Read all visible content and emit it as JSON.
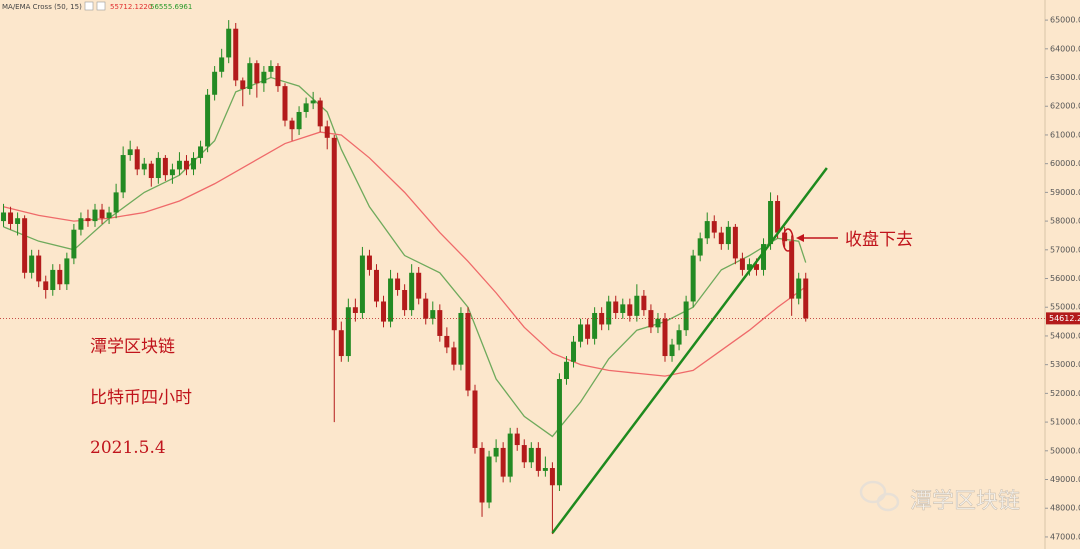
{
  "chart_data": {
    "type": "candlestick",
    "indicator": "MA/EMA Cross (50, 15)",
    "indicator_values": [
      {
        "text": "55712.1220",
        "color": "#e03030"
      },
      {
        "text": "56555.6961",
        "color": "#2a9a2a"
      }
    ],
    "title_lines": [
      "潭学区块链",
      "比特币四小时",
      "2021.5.4"
    ],
    "annotation": "收盘下去",
    "watermark": "潭学区块链",
    "xlim": [
      -0.5,
      148
    ],
    "ylim": [
      46580,
      65700
    ],
    "yticks": [
      {
        "value": 47000,
        "label": "47000.00"
      },
      {
        "value": 48000,
        "label": "48000.00"
      },
      {
        "value": 49000,
        "label": "49000.00"
      },
      {
        "value": 50000,
        "label": "50000.00"
      },
      {
        "value": 51000,
        "label": "51000.00"
      },
      {
        "value": 52000,
        "label": "52000.00"
      },
      {
        "value": 53000,
        "label": "53000.00"
      },
      {
        "value": 54000,
        "label": "54000.00"
      },
      {
        "value": 55000,
        "label": "55000.00"
      },
      {
        "value": 56000,
        "label": "56000.00"
      },
      {
        "value": 57000,
        "label": "57000.00"
      },
      {
        "value": 58000,
        "label": "58000.00"
      },
      {
        "value": 59000,
        "label": "59000.00"
      },
      {
        "value": 60000,
        "label": "60000.00"
      },
      {
        "value": 61000,
        "label": "61000.00"
      },
      {
        "value": 62000,
        "label": "62000.00"
      },
      {
        "value": 63000,
        "label": "63000.00"
      },
      {
        "value": 64000,
        "label": "64000.00"
      },
      {
        "value": 65000,
        "label": "65000.00"
      }
    ],
    "last_price": 54612.24,
    "up_color": "#238a23",
    "down_color": "#b31b1b",
    "ohlc": [
      [
        58000,
        58600,
        57800,
        58300
      ],
      [
        58300,
        58500,
        57700,
        57900
      ],
      [
        57900,
        58300,
        57500,
        58100
      ],
      [
        58100,
        58200,
        56000,
        56200
      ],
      [
        56200,
        57000,
        56000,
        56800
      ],
      [
        56800,
        57000,
        55700,
        55900
      ],
      [
        55900,
        56100,
        55300,
        55600
      ],
      [
        55600,
        56500,
        55400,
        56300
      ],
      [
        56300,
        56500,
        55600,
        55800
      ],
      [
        55800,
        56900,
        55600,
        56700
      ],
      [
        56700,
        57900,
        56500,
        57700
      ],
      [
        57700,
        58300,
        57500,
        58100
      ],
      [
        58100,
        58400,
        57800,
        58000
      ],
      [
        58000,
        58600,
        57800,
        58400
      ],
      [
        58400,
        58600,
        57900,
        58100
      ],
      [
        58100,
        58500,
        57900,
        58300
      ],
      [
        58300,
        59300,
        58100,
        59000
      ],
      [
        59000,
        60600,
        58800,
        60300
      ],
      [
        60300,
        60800,
        60100,
        60500
      ],
      [
        60500,
        60600,
        59600,
        59800
      ],
      [
        59800,
        60200,
        59600,
        60000
      ],
      [
        60000,
        60100,
        59200,
        59500
      ],
      [
        59500,
        60400,
        59300,
        60200
      ],
      [
        60200,
        60300,
        59400,
        59600
      ],
      [
        59600,
        60000,
        59300,
        59800
      ],
      [
        59800,
        60400,
        59600,
        60100
      ],
      [
        60100,
        60300,
        59600,
        59800
      ],
      [
        59800,
        60400,
        59600,
        60200
      ],
      [
        60200,
        60800,
        60000,
        60600
      ],
      [
        60600,
        62600,
        60400,
        62400
      ],
      [
        62400,
        63400,
        62200,
        63200
      ],
      [
        63200,
        64000,
        63000,
        63700
      ],
      [
        63700,
        65000,
        63500,
        64700
      ],
      [
        64700,
        64900,
        62700,
        62900
      ],
      [
        62900,
        63000,
        62000,
        62600
      ],
      [
        62600,
        63700,
        62400,
        63500
      ],
      [
        63500,
        63600,
        62300,
        62800
      ],
      [
        62800,
        63400,
        62500,
        63200
      ],
      [
        63200,
        63600,
        63000,
        63400
      ],
      [
        63400,
        63500,
        62500,
        62700
      ],
      [
        62700,
        62800,
        61300,
        61500
      ],
      [
        61500,
        61600,
        60800,
        61200
      ],
      [
        61200,
        62000,
        61000,
        61800
      ],
      [
        61800,
        62300,
        61600,
        62100
      ],
      [
        62100,
        62500,
        61900,
        62200
      ],
      [
        62200,
        62300,
        61100,
        61300
      ],
      [
        61300,
        61500,
        60500,
        60900
      ],
      [
        60900,
        61000,
        51000,
        54200
      ],
      [
        54200,
        54500,
        53100,
        53300
      ],
      [
        53300,
        55300,
        53100,
        55000
      ],
      [
        55000,
        55300,
        54500,
        54800
      ],
      [
        54800,
        57100,
        54600,
        56800
      ],
      [
        56800,
        57000,
        56100,
        56300
      ],
      [
        56300,
        56500,
        55000,
        55200
      ],
      [
        55200,
        55400,
        54300,
        54500
      ],
      [
        54500,
        56300,
        54300,
        56000
      ],
      [
        56000,
        56200,
        55400,
        55600
      ],
      [
        55600,
        55800,
        54700,
        54900
      ],
      [
        54900,
        56500,
        54700,
        56200
      ],
      [
        56200,
        56400,
        55100,
        55300
      ],
      [
        55300,
        55500,
        54400,
        54600
      ],
      [
        54600,
        55200,
        54400,
        54900
      ],
      [
        54900,
        55100,
        53800,
        54000
      ],
      [
        54000,
        54300,
        53400,
        53600
      ],
      [
        53600,
        53800,
        52800,
        53000
      ],
      [
        53000,
        55000,
        52800,
        54800
      ],
      [
        54800,
        55000,
        51900,
        52100
      ],
      [
        52100,
        52300,
        49900,
        50100
      ],
      [
        50100,
        50300,
        47700,
        48200
      ],
      [
        48200,
        50000,
        48000,
        49800
      ],
      [
        49800,
        50400,
        49600,
        50100
      ],
      [
        50100,
        50300,
        48900,
        49100
      ],
      [
        49100,
        50800,
        48900,
        50600
      ],
      [
        50600,
        50800,
        50000,
        50200
      ],
      [
        50200,
        50400,
        49400,
        49600
      ],
      [
        49600,
        50300,
        49400,
        50100
      ],
      [
        50100,
        50300,
        49100,
        49300
      ],
      [
        49300,
        49800,
        49100,
        49400
      ],
      [
        49400,
        49600,
        47100,
        48800
      ],
      [
        48800,
        52700,
        48600,
        52500
      ],
      [
        52500,
        53300,
        52300,
        53100
      ],
      [
        53100,
        54000,
        52900,
        53800
      ],
      [
        53800,
        54600,
        53600,
        54400
      ],
      [
        54400,
        54600,
        53700,
        53900
      ],
      [
        53900,
        55000,
        53700,
        54800
      ],
      [
        54800,
        55000,
        54200,
        54400
      ],
      [
        54400,
        55400,
        54200,
        55200
      ],
      [
        55200,
        55400,
        54600,
        54800
      ],
      [
        54800,
        55300,
        54600,
        55100
      ],
      [
        55100,
        55300,
        54500,
        54700
      ],
      [
        54700,
        55800,
        54500,
        55400
      ],
      [
        55400,
        55600,
        54700,
        54900
      ],
      [
        54900,
        55100,
        54100,
        54300
      ],
      [
        54300,
        54800,
        54100,
        54600
      ],
      [
        54600,
        54800,
        53100,
        53300
      ],
      [
        53300,
        53900,
        53100,
        53700
      ],
      [
        53700,
        54400,
        53500,
        54200
      ],
      [
        54200,
        55400,
        54000,
        55200
      ],
      [
        55200,
        57000,
        55000,
        56800
      ],
      [
        56800,
        57600,
        56600,
        57400
      ],
      [
        57400,
        58300,
        57200,
        58000
      ],
      [
        58000,
        58200,
        57400,
        57600
      ],
      [
        57600,
        57800,
        57000,
        57200
      ],
      [
        57200,
        58000,
        57000,
        57800
      ],
      [
        57800,
        57900,
        56500,
        56700
      ],
      [
        56700,
        56900,
        56100,
        56300
      ],
      [
        56300,
        56700,
        56100,
        56500
      ],
      [
        56500,
        56700,
        56100,
        56300
      ],
      [
        56300,
        57400,
        56100,
        57200
      ],
      [
        57200,
        59000,
        57000,
        58700
      ],
      [
        58700,
        58900,
        57400,
        57600
      ],
      [
        57600,
        57800,
        57100,
        57300
      ],
      [
        57300,
        57500,
        54700,
        55300
      ],
      [
        55300,
        56200,
        55100,
        56000
      ],
      [
        56000,
        56200,
        54500,
        54612.24
      ]
    ],
    "ma_lines": [
      {
        "color": "#6faa5c",
        "x": [
          0,
          5,
          10,
          15,
          20,
          25,
          30,
          33,
          38,
          42,
          46,
          48,
          52,
          57,
          62,
          66,
          70,
          74,
          78,
          82,
          86,
          90,
          94,
          98,
          102,
          106,
          110,
          113,
          114
        ],
        "values": [
          57800,
          57300,
          57000,
          58100,
          59000,
          59600,
          60800,
          62500,
          63000,
          62700,
          61800,
          60500,
          58500,
          56800,
          56200,
          55000,
          52500,
          51200,
          50500,
          51700,
          53200,
          54200,
          54500,
          55000,
          56300,
          56800,
          57400,
          57300,
          56555.6961
        ]
      },
      {
        "color": "#ef6a6a",
        "x": [
          0,
          5,
          10,
          15,
          20,
          25,
          30,
          35,
          40,
          45,
          48,
          52,
          57,
          62,
          66,
          70,
          74,
          78,
          82,
          86,
          90,
          94,
          98,
          102,
          106,
          110,
          114
        ],
        "values": [
          58500,
          58200,
          58000,
          58100,
          58300,
          58700,
          59300,
          60000,
          60700,
          61100,
          61000,
          60200,
          59000,
          57600,
          56600,
          55500,
          54300,
          53400,
          53000,
          52800,
          52700,
          52600,
          52800,
          53500,
          54200,
          55000,
          55712.122
        ]
      }
    ],
    "trendline": {
      "color": "#1e8a1e",
      "x": [
        78,
        117
      ],
      "values": [
        47138,
        59847
      ]
    }
  }
}
